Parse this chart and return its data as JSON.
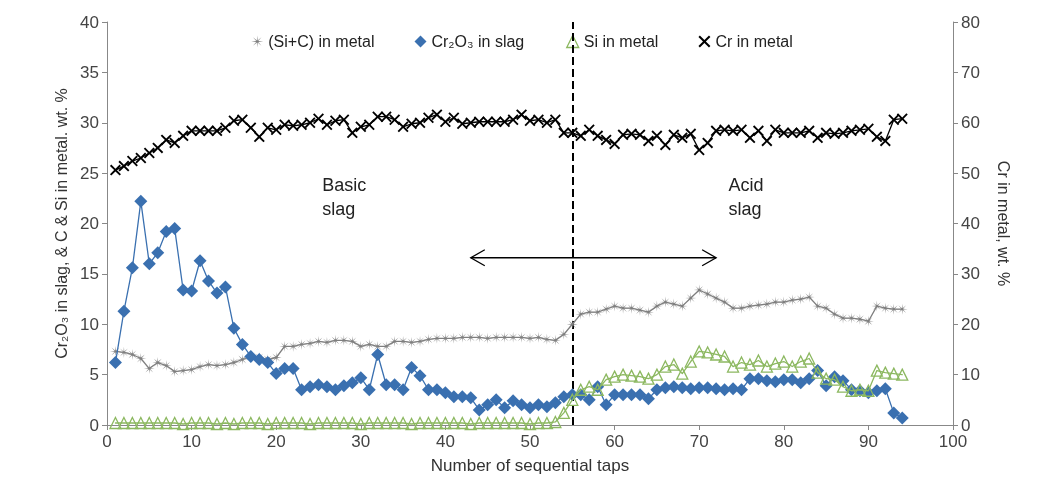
{
  "chart_data": {
    "type": "line",
    "xlabel": "Number of sequential taps",
    "ylabel": "Cr₂O₃ in slag, & C & Si in metal. wt. %",
    "y2label": "Cr in metal, wt. %",
    "x": [
      1,
      2,
      3,
      4,
      5,
      6,
      7,
      8,
      9,
      10,
      11,
      12,
      13,
      14,
      15,
      16,
      17,
      18,
      19,
      20,
      21,
      22,
      23,
      24,
      25,
      26,
      27,
      28,
      29,
      30,
      31,
      32,
      33,
      34,
      35,
      36,
      37,
      38,
      39,
      40,
      41,
      42,
      43,
      44,
      45,
      46,
      47,
      48,
      49,
      50,
      51,
      52,
      53,
      54,
      55,
      56,
      57,
      58,
      59,
      60,
      61,
      62,
      63,
      64,
      65,
      66,
      67,
      68,
      69,
      70,
      71,
      72,
      73,
      74,
      75,
      76,
      77,
      78,
      79,
      80,
      81,
      82,
      83,
      84,
      85,
      86,
      87,
      88,
      89,
      90,
      91,
      92,
      93,
      94
    ],
    "series": [
      {
        "name": "(Si+C) in metal",
        "color": "#7f7f7f",
        "marker": "star",
        "values": [
          7.3,
          7.2,
          7,
          6.6,
          5.6,
          6.2,
          5.9,
          5.3,
          5.4,
          5.5,
          5.8,
          6,
          5.9,
          6,
          6.2,
          6.5,
          6.8,
          6.7,
          6.5,
          6.7,
          7.8,
          7.8,
          8,
          8.1,
          8.3,
          8.2,
          8.4,
          8.4,
          8.3,
          7.8,
          8,
          7.8,
          7.8,
          8.3,
          8.3,
          8.2,
          8.3,
          8.5,
          8.6,
          8.6,
          8.6,
          8.7,
          8.7,
          8.7,
          8.6,
          8.7,
          8.7,
          8.7,
          8.7,
          8.6,
          8.7,
          8.5,
          8.4,
          9,
          10,
          11,
          11.2,
          11.2,
          11.5,
          11.8,
          11.6,
          11.6,
          11.4,
          11.2,
          11.8,
          12.2,
          12,
          11.8,
          12.6,
          13.4,
          13,
          12.6,
          12.2,
          11.6,
          11.6,
          11.8,
          11.9,
          12,
          12.2,
          12.2,
          12.4,
          12.5,
          12.7,
          11.8,
          11.6,
          11,
          10.6,
          10.6,
          10.5,
          10.3,
          11.8,
          11.6,
          11.5,
          11.5
        ]
      },
      {
        "name": "Cr₂O₃ in slag",
        "color": "#3a70b0",
        "marker": "diamond",
        "values": [
          6.2,
          11.3,
          15.6,
          22.2,
          16,
          17.1,
          19.2,
          19.5,
          13.4,
          13.3,
          16.3,
          14.3,
          13.1,
          13.7,
          9.6,
          8,
          6.8,
          6.5,
          6.2,
          5.1,
          5.6,
          5.6,
          3.5,
          3.8,
          4,
          3.8,
          3.5,
          3.9,
          4.2,
          4.7,
          3.5,
          7,
          4,
          4,
          3.5,
          5.7,
          4.9,
          3.5,
          3.5,
          3.2,
          2.8,
          2.8,
          2.7,
          1.5,
          2,
          2.5,
          1.7,
          2.4,
          2,
          1.7,
          2,
          1.8,
          2.2,
          2.8,
          3,
          3,
          2.5,
          3.8,
          2,
          3,
          3,
          3,
          3,
          2.6,
          3.5,
          3.7,
          3.8,
          3.7,
          3.6,
          3.7,
          3.7,
          3.6,
          3.5,
          3.6,
          3.5,
          4.6,
          4.6,
          4.4,
          4.3,
          4.5,
          4.5,
          4.2,
          4.6,
          5.4,
          3.9,
          4.8,
          4.4,
          3.5,
          3.4,
          3.2,
          3.4,
          3.6,
          1.2,
          0.7
        ]
      },
      {
        "name": "Si in metal",
        "color": "#8cb860",
        "marker": "triangle",
        "values": [
          0.2,
          0.2,
          0.2,
          0.2,
          0.2,
          0.2,
          0.2,
          0.2,
          0.1,
          0.2,
          0.2,
          0.2,
          0.1,
          0.2,
          0.1,
          0.2,
          0.2,
          0.2,
          0.1,
          0.2,
          0.2,
          0.2,
          0.2,
          0.1,
          0.2,
          0.2,
          0.2,
          0.2,
          0.2,
          0.1,
          0.2,
          0.2,
          0.2,
          0.2,
          0.2,
          0.1,
          0.2,
          0.2,
          0.2,
          0.2,
          0.2,
          0.2,
          0.1,
          0.2,
          0.2,
          0.2,
          0.2,
          0.2,
          0.2,
          0.1,
          0.2,
          0.2,
          0.3,
          1.2,
          2.5,
          3.5,
          3.8,
          3.5,
          4.5,
          4.8,
          5,
          4.9,
          4.8,
          4.6,
          5,
          5.8,
          6,
          5.1,
          6.3,
          7.3,
          7.2,
          7,
          6.8,
          5.8,
          6.2,
          6,
          6.4,
          5.8,
          6.1,
          6.3,
          5.8,
          6.3,
          6.6,
          5.2,
          4.6,
          4.5,
          3.8,
          3.4,
          3.5,
          3.4,
          5.4,
          5.2,
          5.1,
          5
        ]
      },
      {
        "name": "Cr in metal",
        "color": "#000000",
        "marker": "cross",
        "axis": "y2",
        "values": [
          50.6,
          51.4,
          52.4,
          53,
          54,
          55,
          56.6,
          56,
          57.4,
          58.4,
          58.4,
          58.4,
          58.4,
          59,
          60.4,
          60.6,
          59,
          57.2,
          59,
          58.6,
          59.6,
          59.4,
          59.6,
          60,
          60.8,
          59.6,
          60.4,
          60.6,
          58,
          59.2,
          59.6,
          61.2,
          61.2,
          60.6,
          59.2,
          59.8,
          60,
          61,
          61.6,
          60.2,
          61,
          59.8,
          60,
          60.2,
          60.2,
          60.2,
          60.2,
          60.6,
          61.6,
          60.4,
          60.6,
          60,
          60.6,
          58,
          58,
          57.4,
          58.6,
          57.4,
          56.6,
          55.8,
          57.6,
          57.8,
          57.6,
          56.4,
          57.4,
          55.6,
          57.6,
          57,
          57.8,
          54.6,
          56,
          58.4,
          58.6,
          58.4,
          58.6,
          57,
          58.4,
          56.4,
          58.6,
          58,
          58,
          58,
          58.4,
          57,
          58,
          57.8,
          58,
          58.4,
          58.6,
          58.8,
          57.2,
          56.4,
          60.6,
          60.8
        ]
      }
    ],
    "xlim": [
      0,
      100
    ],
    "xticks": [
      0,
      10,
      20,
      30,
      40,
      50,
      60,
      70,
      80,
      90,
      100
    ],
    "ylim": [
      0,
      40
    ],
    "yticks": [
      0,
      5,
      10,
      15,
      20,
      25,
      30,
      35,
      40
    ],
    "y2lim": [
      0,
      80
    ],
    "y2ticks": [
      0,
      10,
      20,
      30,
      40,
      50,
      60,
      70,
      80
    ],
    "ref_lines": [
      {
        "axis": "x",
        "value": 55,
        "label": null,
        "color": "#000000",
        "line_style": "dashed"
      }
    ],
    "annotations": [
      "Basic slag",
      "Acid slag"
    ],
    "legend": "top",
    "grid": false,
    "line_style": "solid"
  }
}
